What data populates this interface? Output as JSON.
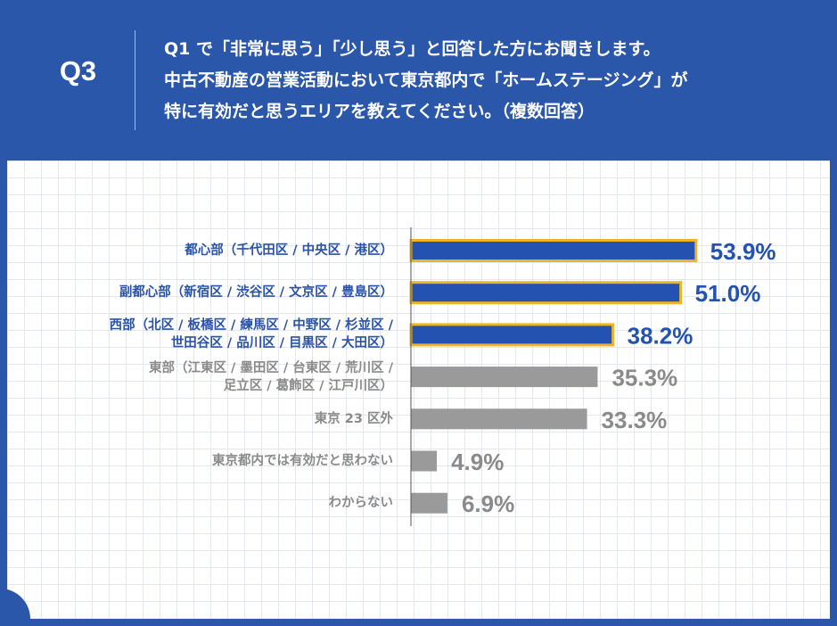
{
  "chart_data": {
    "type": "bar",
    "orientation": "horizontal",
    "title": "Q3",
    "subtitle": "Q1 で「非常に思う」「少し思う」と回答した方にお聞きします。\n中古不動産の営業活動において東京都内で「ホームステージング」が\n特に有効だと思うエリアを教えてください。（複数回答）",
    "categories": [
      "都心部（千代田区 / 中央区 / 港区）",
      "副都心部（新宿区 / 渋谷区 / 文京区 / 豊島区）",
      "西部（北区 / 板橋区 / 練馬区 / 中野区 / 杉並区 /\n世田谷区 / 品川区 / 目黒区 / 大田区）",
      "東部（江東区 / 墨田区 / 台東区 / 荒川区 /\n足立区 / 葛飾区 / 江戸川区）",
      "東京 23 区外",
      "東京都内では有効だと思わない",
      "わからない"
    ],
    "values": [
      53.9,
      51.0,
      38.2,
      35.3,
      33.3,
      4.9,
      6.9
    ],
    "value_labels": [
      "53.9%",
      "51.0%",
      "38.2%",
      "35.3%",
      "33.3%",
      "4.9%",
      "6.9%"
    ],
    "colors": [
      "#2452b0",
      "#2452b0",
      "#2452b0",
      "#9a9a9a",
      "#9a9a9a",
      "#9a9a9a",
      "#9a9a9a"
    ],
    "label_colors": [
      "#2a53a8",
      "#2a53a8",
      "#2a53a8",
      "#8a8a8a",
      "#8a8a8a",
      "#8a8a8a",
      "#8a8a8a"
    ],
    "highlight_border": "#f0b323",
    "highlighted": [
      true,
      true,
      true,
      false,
      false,
      false,
      false
    ],
    "xlim": [
      0,
      60
    ]
  }
}
